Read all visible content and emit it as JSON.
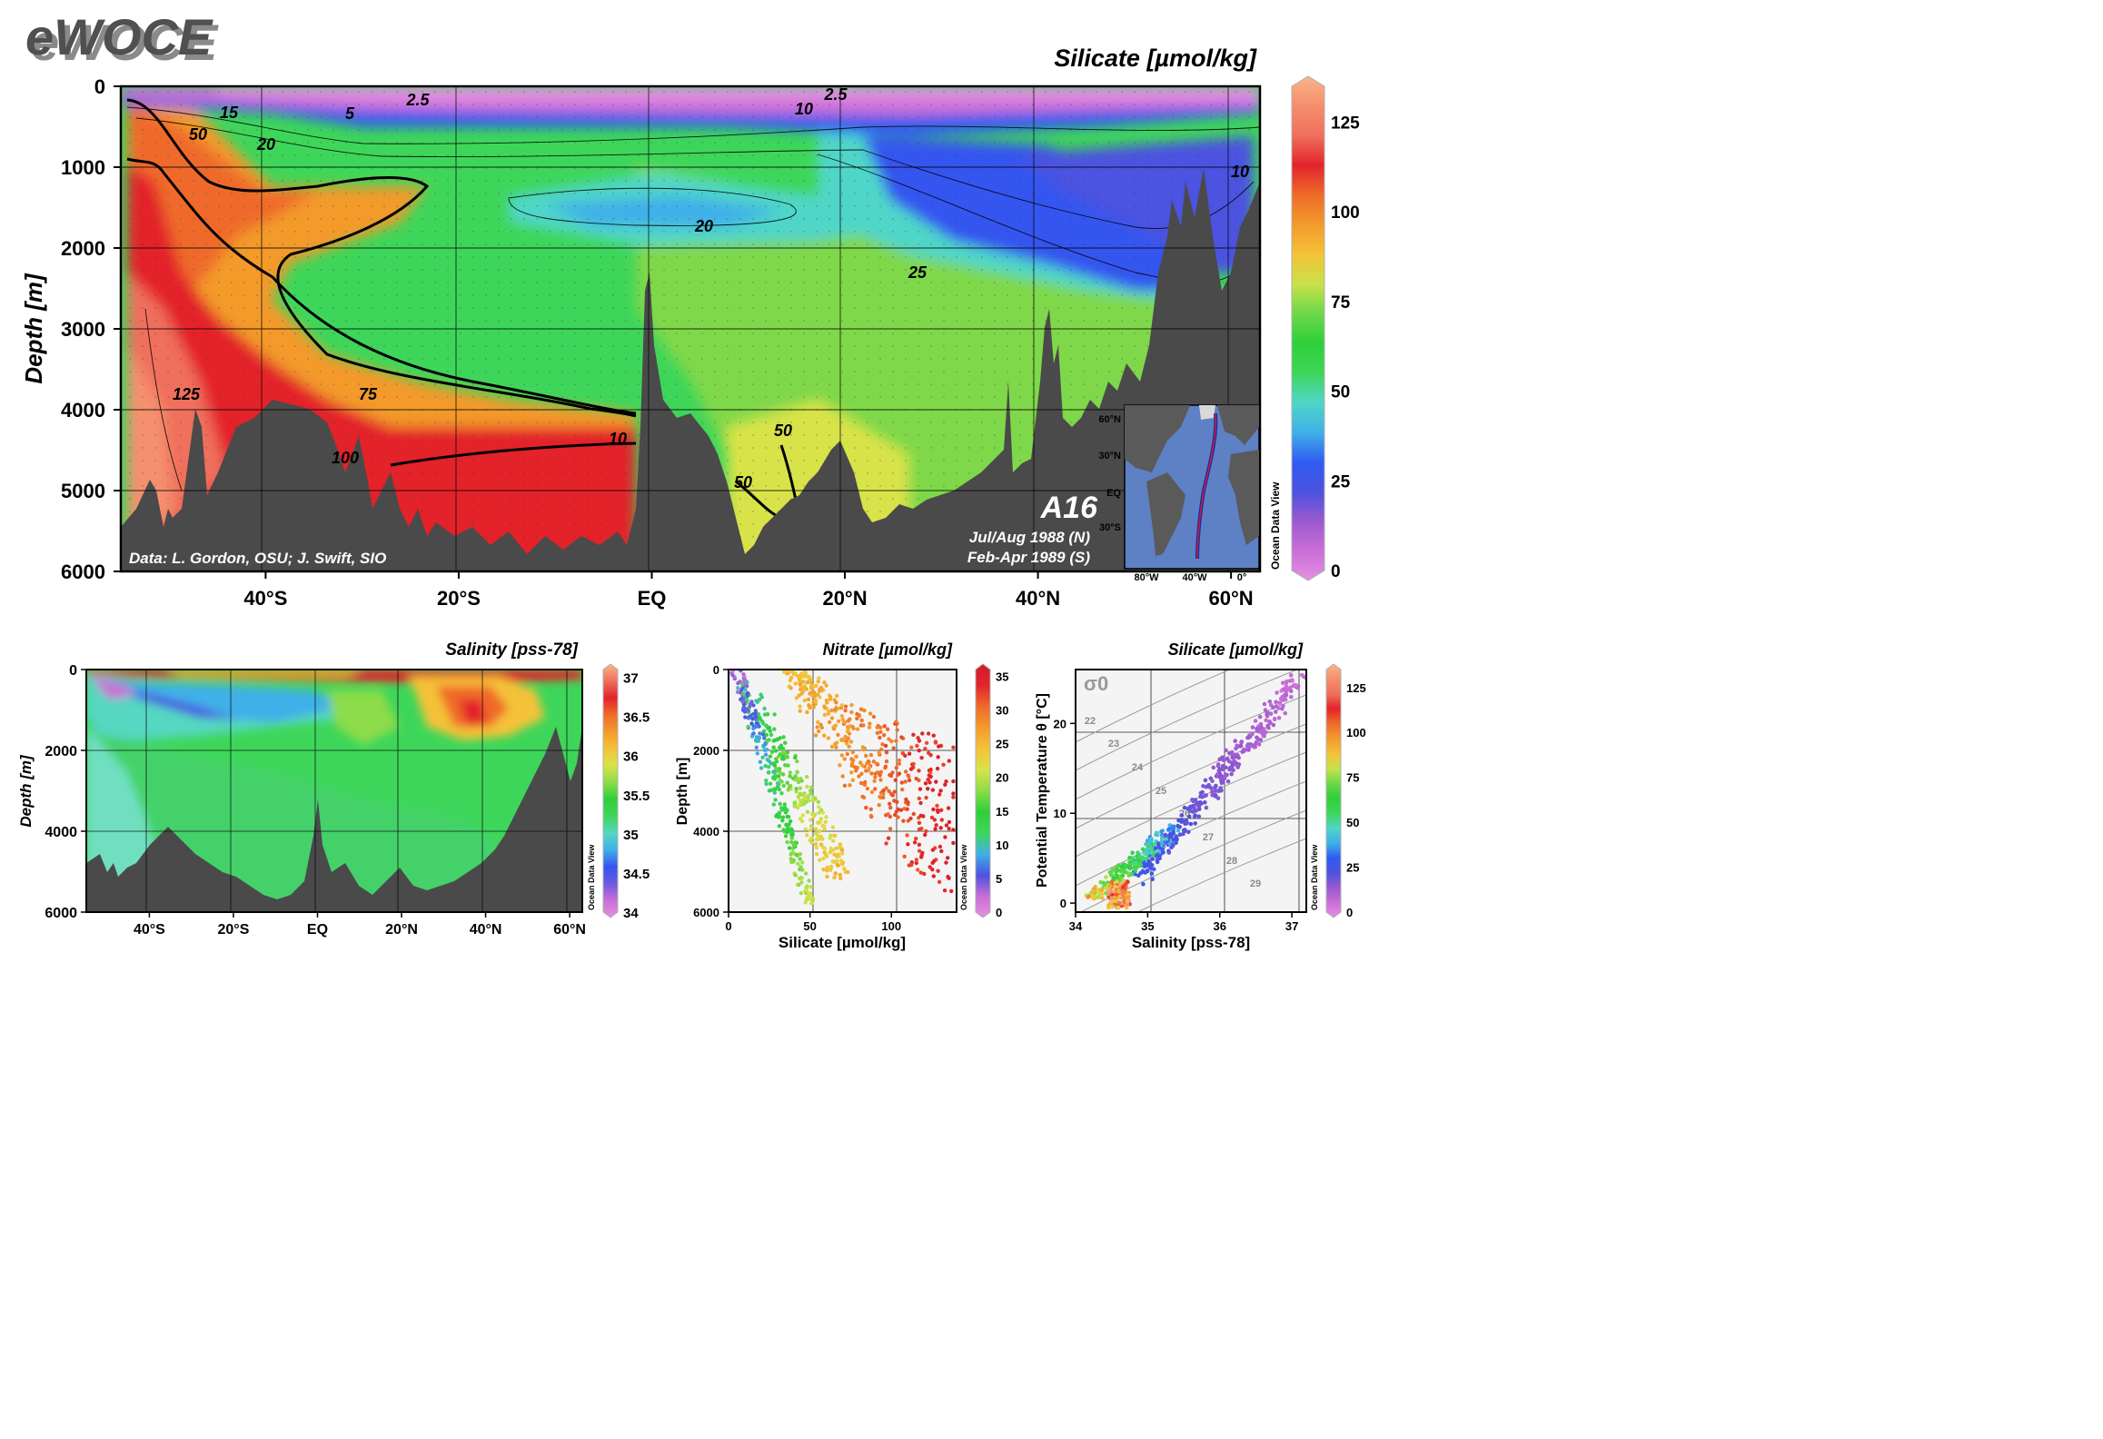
{
  "logo": "eWOCE",
  "colors": {
    "bathymetry": "#4a4a4a",
    "frame": "#000000",
    "grid": "#000000"
  },
  "colormaps": {
    "silicate": [
      "#e58fe3",
      "#c96fd6",
      "#9b59d0",
      "#4c52e0",
      "#2f5cf0",
      "#3fb0e8",
      "#4fd6c8",
      "#3ed65a",
      "#2fcf3a",
      "#6cd84a",
      "#c8e24a",
      "#f4c238",
      "#f39a2c",
      "#ef6b2a",
      "#e3232c",
      "#ef6f5c",
      "#f58e6c",
      "#f9b489"
    ],
    "salinity": [
      "#e58fe3",
      "#c96fd6",
      "#6d5ae0",
      "#3454f0",
      "#3fb0e8",
      "#55d7c1",
      "#3ed65a",
      "#2fcf3a",
      "#8ddc4a",
      "#d8e34a",
      "#f4c238",
      "#f39a2c",
      "#ef6b2a",
      "#e3232c",
      "#ef6f5c",
      "#f9b489"
    ],
    "nitrate": [
      "#e58fe3",
      "#c96fd6",
      "#4c52e0",
      "#3fb0e8",
      "#3ed65a",
      "#2fcf3a",
      "#8ddc4a",
      "#d8e34a",
      "#f4c238",
      "#f39a2c",
      "#ef6b2a",
      "#e3232c",
      "#d31b2a"
    ]
  },
  "main": {
    "title": "Silicate [µmol/kg]",
    "ylabel": "Depth [m]",
    "credit": "Data: L. Gordon, OSU; J. Swift, SIO",
    "section_name": "A16",
    "cruise_dates": [
      "Jul/Aug 1988 (N)",
      "Feb-Apr 1989 (S)"
    ],
    "colorbar_ticks": [
      "0",
      "25",
      "50",
      "75",
      "100",
      "125"
    ],
    "odv_label": "Ocean Data View"
  },
  "inset_map": {
    "lat_labels": [
      "60°N",
      "30°N",
      "EQ",
      "30°S"
    ],
    "lon_labels": [
      "80°W",
      "40°W",
      "0°"
    ]
  },
  "chart_data": [
    {
      "type": "heatmap",
      "title": "Silicate [µmol/kg]",
      "ylabel": "Depth [m]",
      "xlabel": "",
      "x_ticks": [
        "40°S",
        "20°S",
        "EQ",
        "20°N",
        "40°N",
        "60°N"
      ],
      "x_tick_values": [
        -40,
        -20,
        0,
        20,
        40,
        60
      ],
      "xlim": [
        -55,
        63
      ],
      "y_ticks": [
        0,
        1000,
        2000,
        3000,
        4000,
        5000,
        6000
      ],
      "ylim": [
        0,
        6000
      ],
      "y_inverted": true,
      "colorbar_range": [
        0,
        135
      ],
      "contour_labels": [
        "2.5",
        "5",
        "10",
        "15",
        "20",
        "25",
        "50",
        "75",
        "100",
        "125"
      ],
      "grid": true
    },
    {
      "type": "heatmap",
      "title": "Salinity [pss-78]",
      "ylabel": "Depth [m]",
      "x_ticks": [
        "40°S",
        "20°S",
        "EQ",
        "20°N",
        "40°N",
        "60°N"
      ],
      "x_tick_values": [
        -40,
        -20,
        0,
        20,
        40,
        60
      ],
      "xlim": [
        -55,
        63
      ],
      "y_ticks": [
        0,
        2000,
        4000,
        6000
      ],
      "ylim": [
        0,
        6000
      ],
      "y_inverted": true,
      "colorbar_ticks": [
        "34",
        "34.5",
        "35",
        "35.5",
        "36",
        "36.5",
        "37"
      ],
      "colorbar_range": [
        34,
        37.1
      ],
      "grid": true
    },
    {
      "type": "scatter",
      "title": "Nitrate [µmol/kg]",
      "xlabel": "Silicate [µmol/kg]",
      "ylabel": "Depth [m]",
      "x_ticks": [
        0,
        50,
        100
      ],
      "xlim": [
        0,
        140
      ],
      "y_ticks": [
        0,
        2000,
        4000,
        6000
      ],
      "ylim": [
        0,
        6000
      ],
      "y_inverted": true,
      "color_variable": "Nitrate [µmol/kg]",
      "colorbar_ticks": [
        "0",
        "5",
        "10",
        "15",
        "20",
        "25",
        "30",
        "35"
      ],
      "colorbar_range": [
        0,
        36
      ],
      "grid": true
    },
    {
      "type": "scatter",
      "title": "Silicate [µmol/kg]",
      "xlabel": "Salinity [pss-78]",
      "ylabel": "Potential Temperature θ [°C]",
      "x_ticks": [
        34,
        35,
        36,
        37
      ],
      "xlim": [
        34,
        37.2
      ],
      "y_ticks": [
        0,
        10,
        20
      ],
      "ylim": [
        -1,
        26
      ],
      "color_variable": "Silicate [µmol/kg]",
      "colorbar_ticks": [
        "0",
        "25",
        "50",
        "75",
        "100",
        "125"
      ],
      "colorbar_range": [
        0,
        135
      ],
      "isopycnal_symbol": "σ0",
      "isopycnal_labels": [
        "22",
        "23",
        "24",
        "25",
        "26",
        "27",
        "28",
        "29"
      ],
      "grid": true
    }
  ]
}
